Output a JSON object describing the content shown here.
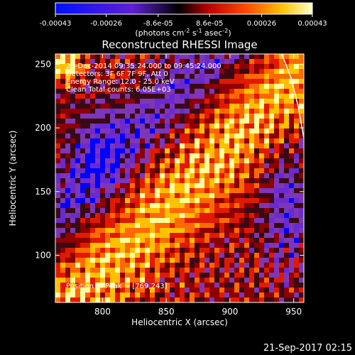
{
  "colorbar": {
    "ticks": [
      "-0.00043",
      "-0.00026",
      "-8.6e-05",
      "8.6e-05",
      "0.00026",
      "0.00043"
    ],
    "range": [
      -0.00043,
      0.00043
    ],
    "unit_main": "(photons cm",
    "unit_sup1": "-2",
    "unit_mid": " s",
    "unit_sup2": "-1",
    "unit_end": " asec",
    "unit_sup3": "-2",
    "unit_close": ")"
  },
  "chart_data": {
    "type": "heatmap",
    "title": "Reconstructed RHESSI Image",
    "xlabel": "Heliocentric X (arcsec)",
    "ylabel": "Heliocentric Y (arcsec)",
    "xlim": [
      763,
      958
    ],
    "ylim": [
      63,
      258
    ],
    "x_ticks": [
      800,
      850,
      900,
      950
    ],
    "y_ticks": [
      100,
      150,
      200,
      250
    ],
    "colormap": [
      "#0000ff",
      "#6a2ad0",
      "#7e36b8",
      "#3a0a14",
      "#8c0000",
      "#e01a00",
      "#ff6a00",
      "#ffc000",
      "#ffffa0"
    ],
    "annotations": [
      "29-Dec-2014 09:35:24.000 to 09:45:24.000",
      "Detectors: 3F 6F 7F 9F, Att 0",
      "Energy Range: 12.0 - 25.0 keV",
      "Clean    Total counts: 6.05E+03"
    ],
    "peak_label": "Position of Peak = [769,243]",
    "peak": [
      769,
      243
    ]
  },
  "footer": "21-Sep-2017 02:15"
}
